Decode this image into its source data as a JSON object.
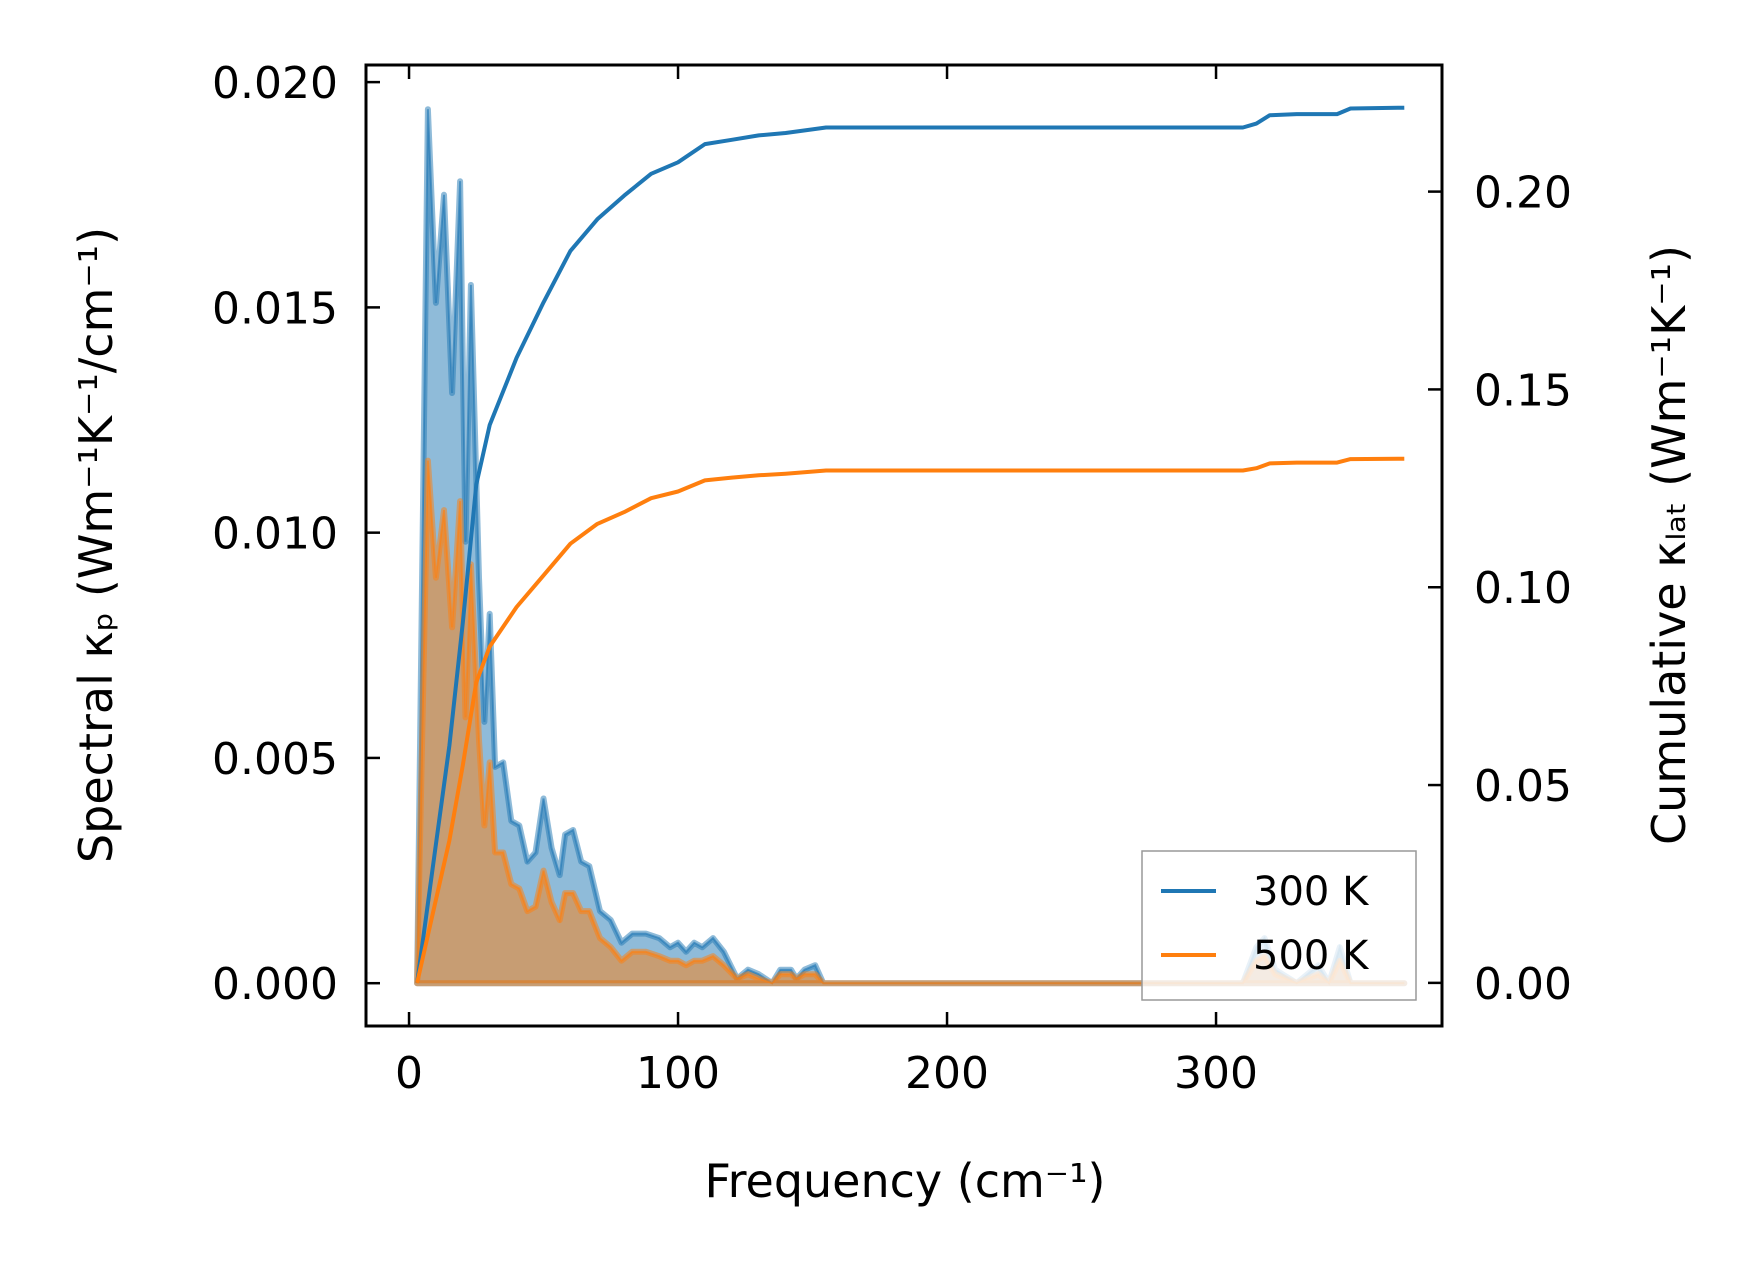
{
  "chart_data": {
    "type": "line",
    "xlabel": "Frequency (cm⁻¹)",
    "ylabel_left": "Spectral κₚ (Wm⁻¹K⁻¹/cm⁻¹)",
    "ylabel_right": "Cumulative κₗₐₜ (Wm⁻¹K⁻¹)",
    "xlim": [
      -16,
      384
    ],
    "ylim_left": [
      -0.00095,
      0.02038
    ],
    "ylim_right": [
      -0.0109,
      0.232
    ],
    "x_ticks": [
      "0",
      "100",
      "200",
      "300"
    ],
    "x_tick_values": [
      0,
      100,
      200,
      300
    ],
    "y_left_ticks": [
      "0.000",
      "0.005",
      "0.010",
      "0.015",
      "0.020"
    ],
    "y_left_tick_values": [
      0,
      0.005,
      0.01,
      0.015,
      0.02
    ],
    "y_right_ticks": [
      "0.00",
      "0.05",
      "0.10",
      "0.15",
      "0.20"
    ],
    "y_right_tick_values": [
      0,
      0.05,
      0.1,
      0.15,
      0.2
    ],
    "legend": {
      "placement": "lower-right",
      "entries": [
        "300 K",
        "500 K"
      ]
    },
    "colors": {
      "300 K": "#1f77b4",
      "500 K": "#ff7f0e"
    },
    "spectral_x": [
      3,
      7,
      10,
      13,
      16,
      19,
      21,
      23,
      26,
      28,
      30,
      32,
      35,
      38,
      41,
      44,
      47,
      50,
      53,
      56,
      58,
      61,
      64,
      67,
      71,
      75,
      79,
      83,
      88,
      93,
      97,
      100,
      103,
      106,
      109,
      113,
      117,
      122,
      126,
      130,
      135,
      138,
      142,
      144,
      147,
      151,
      154,
      310,
      315,
      318,
      322,
      330,
      338,
      342,
      346,
      350,
      370
    ],
    "spectral_series": [
      {
        "name": "300 K",
        "axis": "left",
        "values": [
          0,
          0.0194,
          0.0151,
          0.0175,
          0.0131,
          0.0178,
          0.0098,
          0.0155,
          0.009,
          0.0058,
          0.0082,
          0.0048,
          0.0049,
          0.0036,
          0.0035,
          0.0027,
          0.0029,
          0.0041,
          0.003,
          0.0024,
          0.0033,
          0.0034,
          0.0027,
          0.0026,
          0.0016,
          0.0014,
          0.0009,
          0.0011,
          0.0011,
          0.001,
          0.0008,
          0.0009,
          0.0007,
          0.0009,
          0.0008,
          0.001,
          0.0007,
          0.0001,
          0.0003,
          0.0002,
          0,
          0.0003,
          0.0003,
          0.0001,
          0.0003,
          0.0004,
          0,
          0,
          0.0008,
          0.001,
          0.0003,
          0,
          0.0004,
          0,
          0.0008,
          0,
          0
        ]
      },
      {
        "name": "500 K",
        "axis": "left",
        "values": [
          0,
          0.0116,
          0.009,
          0.0105,
          0.0079,
          0.0107,
          0.0059,
          0.0093,
          0.0054,
          0.0035,
          0.0049,
          0.0029,
          0.0029,
          0.0022,
          0.0021,
          0.0016,
          0.0017,
          0.0025,
          0.0018,
          0.0014,
          0.002,
          0.002,
          0.0016,
          0.0016,
          0.001,
          0.0008,
          0.0005,
          0.0007,
          0.0007,
          0.0006,
          0.0005,
          0.0005,
          0.0004,
          0.0005,
          0.0005,
          0.0006,
          0.0004,
          0.0001,
          0.0002,
          0.0001,
          0,
          0.0002,
          0.0002,
          0.0001,
          0.0002,
          0.0002,
          0,
          0,
          0.0005,
          0.0006,
          0.0002,
          0,
          0.0002,
          0,
          0.0005,
          0,
          0
        ]
      }
    ],
    "cumulative_x": [
      3,
      5,
      10,
      15,
      20,
      25,
      30,
      40,
      50,
      60,
      70,
      80,
      90,
      100,
      110,
      120,
      130,
      140,
      155,
      310,
      315,
      320,
      330,
      345,
      350,
      370
    ],
    "cumulative_series": [
      {
        "name": "300 K",
        "axis": "right",
        "values": [
          0,
          0.01,
          0.035,
          0.06,
          0.091,
          0.126,
          0.141,
          0.158,
          0.172,
          0.185,
          0.193,
          0.199,
          0.2045,
          0.2074,
          0.212,
          0.2131,
          0.2142,
          0.2148,
          0.2162,
          0.2162,
          0.2172,
          0.2193,
          0.2196,
          0.2196,
          0.221,
          0.2212
        ]
      },
      {
        "name": "500 K",
        "axis": "right",
        "values": [
          0,
          0.006,
          0.021,
          0.036,
          0.055,
          0.076,
          0.085,
          0.095,
          0.103,
          0.111,
          0.116,
          0.119,
          0.1225,
          0.1242,
          0.127,
          0.1277,
          0.1283,
          0.1287,
          0.1295,
          0.1295,
          0.1301,
          0.1313,
          0.1315,
          0.1315,
          0.1324,
          0.1325
        ]
      }
    ]
  }
}
